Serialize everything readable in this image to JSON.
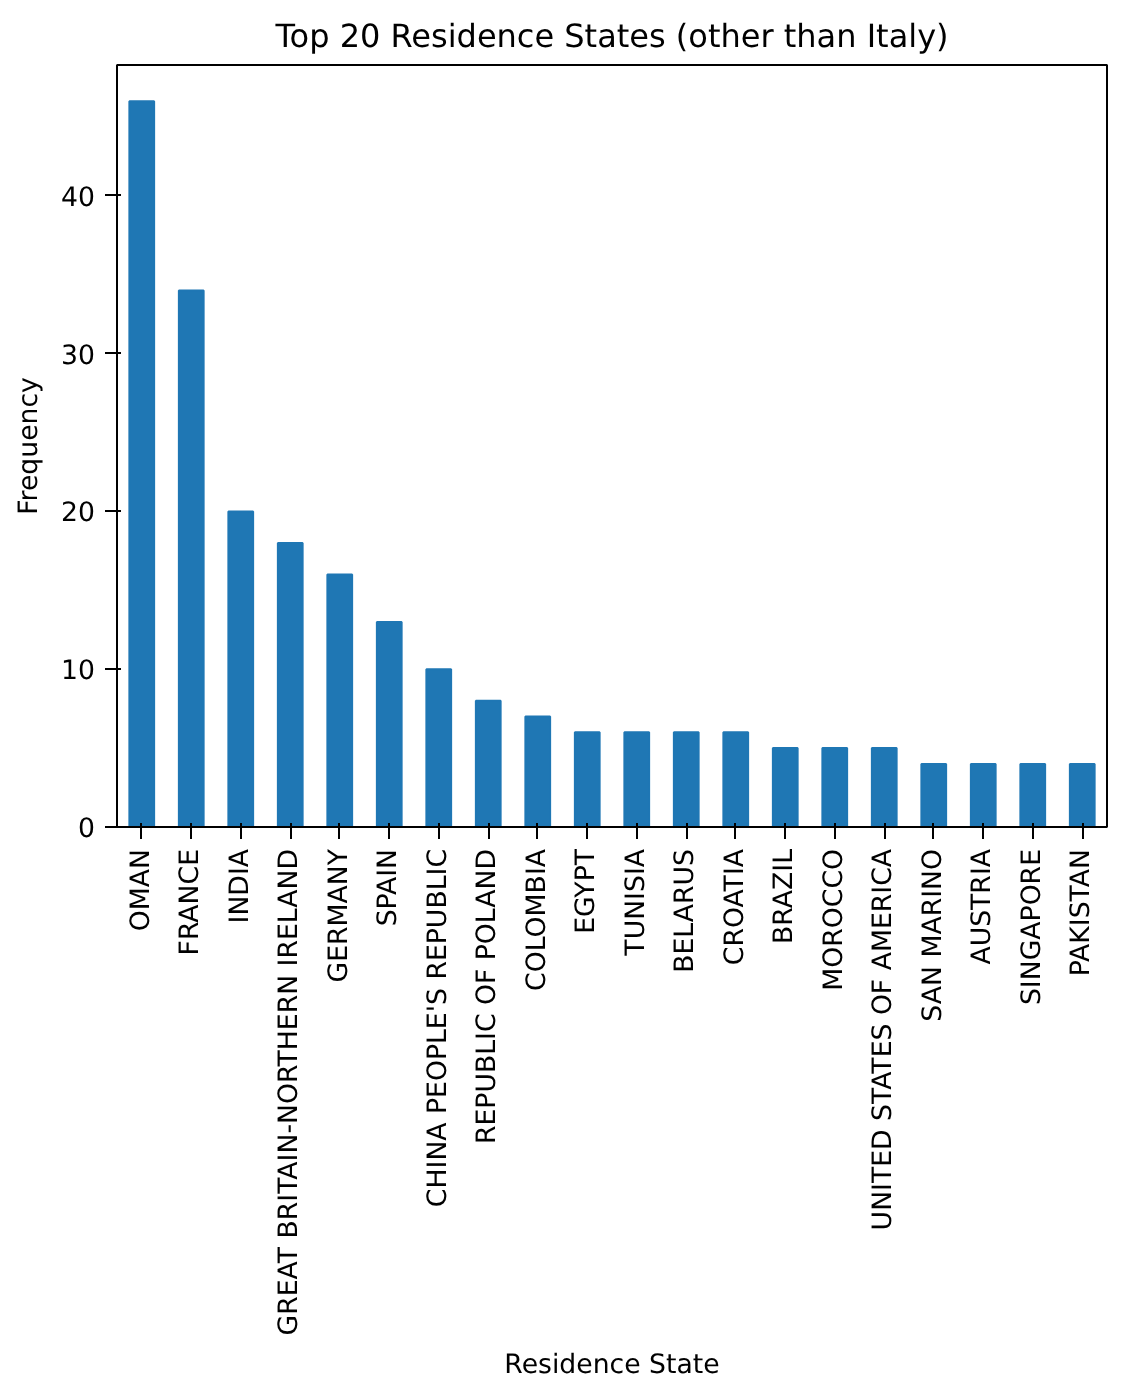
{
  "chart_data": {
    "type": "bar",
    "title": "Top 20 Residence States (other than Italy)",
    "xlabel": "Residence State",
    "ylabel": "Frequency",
    "categories": [
      "OMAN",
      "FRANCE",
      "INDIA",
      "GREAT BRITAIN-NORTHERN IRELAND",
      "GERMANY",
      "SPAIN",
      "CHINA PEOPLE'S REPUBLIC",
      "REPUBLIC OF POLAND",
      "COLOMBIA",
      "EGYPT",
      "TUNISIA",
      "BELARUS",
      "CROATIA",
      "BRAZIL",
      "MOROCCO",
      "UNITED STATES OF AMERICA",
      "SAN MARINO",
      "AUSTRIA",
      "SINGAPORE",
      "PAKISTAN"
    ],
    "values": [
      46,
      34,
      20,
      18,
      16,
      13,
      10,
      8,
      7,
      6,
      6,
      6,
      6,
      5,
      5,
      5,
      4,
      4,
      4,
      4
    ],
    "color": "#1f77b4",
    "ylim": [
      0,
      48.3
    ],
    "yticks": [
      0,
      10,
      20,
      30,
      40
    ],
    "grid": false
  }
}
